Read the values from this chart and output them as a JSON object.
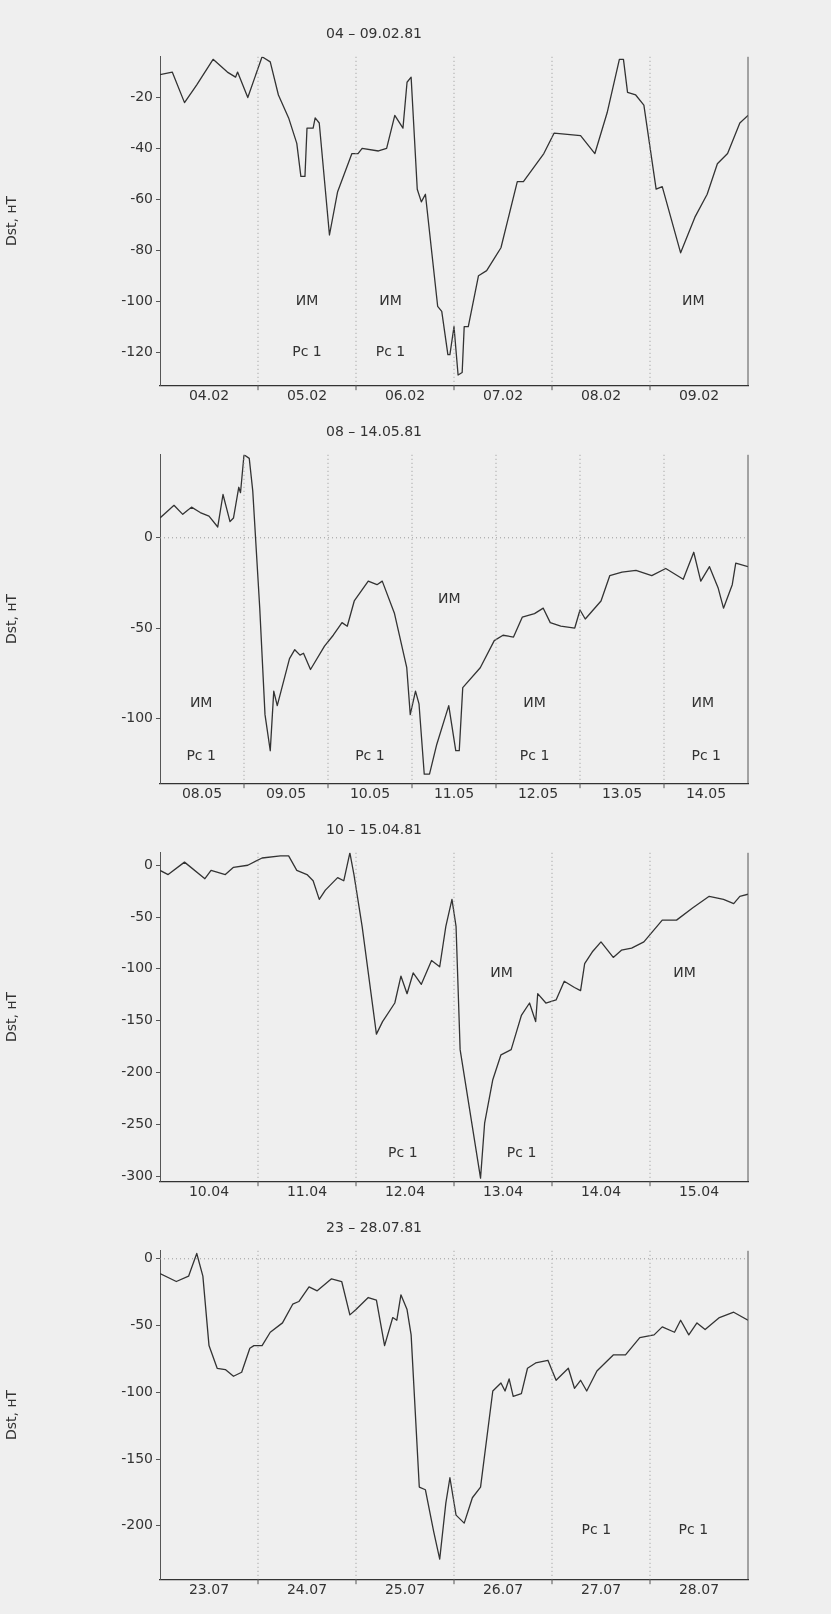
{
  "chart_data": [
    {
      "type": "line",
      "title": "04 – 09.02.81",
      "ylabel": "Dst, нТ",
      "xlim": [
        "--02-04T00:00",
        "--02-10T00:00"
      ],
      "ylim": [
        -133,
        -4
      ],
      "yticks": [
        -20,
        -40,
        -60,
        -80,
        -100,
        -120
      ],
      "xticks": [
        {
          "value": "--02-04T12:00",
          "label": "04.02"
        },
        {
          "value": "--02-05T12:00",
          "label": "05.02"
        },
        {
          "value": "--02-06T12:00",
          "label": "06.02"
        },
        {
          "value": "--02-07T12:00",
          "label": "07.02"
        },
        {
          "value": "--02-08T12:00",
          "label": "08.02"
        },
        {
          "value": "--02-09T12:00",
          "label": "09.02"
        }
      ],
      "x": [
        "--02-04T00:00",
        "--02-04T03:00",
        "--02-04T06:00",
        "--02-04T09:00",
        "--02-04T13:00",
        "--02-04T16:30",
        "--02-04T18:30",
        "--02-04T19:00",
        "--02-04T21:30",
        "--02-05T01:00",
        "--02-05T03:00",
        "--02-05T05:00",
        "--02-05T07:30",
        "--02-05T09:30",
        "--02-05T10:30",
        "--02-05T11:30",
        "--02-05T12:00",
        "--02-05T13:30",
        "--02-05T14:00",
        "--02-05T15:00",
        "--02-05T17:30",
        "--02-05T19:30",
        "--02-05T23:00",
        "--02-06T00:30",
        "--02-06T01:30",
        "--02-06T05:30",
        "--02-06T07:30",
        "--02-06T09:30",
        "--02-06T11:30",
        "--02-06T12:30",
        "--02-06T13:30",
        "--02-06T15:00",
        "--02-06T16:00",
        "--02-06T17:00",
        "--02-06T20:00",
        "--02-06T21:00",
        "--02-06T22:30",
        "--02-06T23:00",
        "--02-07T00:00",
        "--02-07T01:00",
        "--02-07T02:00",
        "--02-07T02:30",
        "--02-07T03:30",
        "--02-07T06:00",
        "--02-07T08:00",
        "--02-07T11:30",
        "--02-07T15:30",
        "--02-07T17:00",
        "--02-07T22:00",
        "--02-08T00:30",
        "--02-08T07:00",
        "--02-08T10:30",
        "--02-08T13:30",
        "--02-08T16:30",
        "--02-08T17:30",
        "--02-08T18:30",
        "--02-08T20:30",
        "--02-08T22:30",
        "--02-09T01:30",
        "--02-09T03:00",
        "--02-09T07:30",
        "--02-09T11:00",
        "--02-09T14:00",
        "--02-09T16:30",
        "--02-09T19:00",
        "--02-09T22:00",
        "--02-10T00:00"
      ],
      "series": [
        {
          "color": "#333333",
          "values": [
            -11,
            -10,
            -22,
            -15,
            -5,
            -10,
            -12,
            -10,
            -20,
            -4,
            -6,
            -19,
            -28,
            -38,
            -51,
            -51,
            -32,
            -32,
            -28,
            -30,
            -74,
            -57,
            -42,
            -42,
            -40,
            -41,
            -40,
            -27,
            -32,
            -14,
            -12,
            -56,
            -61,
            -58,
            -102,
            -104,
            -121,
            -121,
            -110,
            -129,
            -128,
            -110,
            -110,
            -90,
            -88,
            -79,
            -53,
            -53,
            -42,
            -34,
            -35,
            -42,
            -26,
            -5,
            -5,
            -18,
            -19,
            -23,
            -56,
            -55,
            -81,
            -67,
            -58,
            -46,
            -42,
            -30,
            -27
          ]
        }
      ],
      "marker": "none",
      "line_style": "solid",
      "legend": false,
      "grid": false,
      "ref_lines": [
        {
          "axis": "x",
          "value": "--02-05T00:00",
          "color": "#999999",
          "line_style": "dotted"
        },
        {
          "axis": "x",
          "value": "--02-06T00:00",
          "color": "#999999",
          "line_style": "dotted"
        },
        {
          "axis": "x",
          "value": "--02-07T00:00",
          "color": "#999999",
          "line_style": "dotted"
        },
        {
          "axis": "x",
          "value": "--02-08T00:00",
          "color": "#999999",
          "line_style": "dotted"
        },
        {
          "axis": "x",
          "value": "--02-09T00:00",
          "color": "#999999",
          "line_style": "dotted"
        }
      ],
      "annotations": [
        "ИМ",
        "Рс 1",
        "ИМ",
        "Рс 1",
        "ИМ"
      ]
    },
    {
      "type": "line",
      "title": "08 – 14.05.81",
      "ylabel": "Dst, нТ",
      "xlim": [
        "--05-08T00:00",
        "--05-15T00:00"
      ],
      "ylim": [
        -136,
        46
      ],
      "yticks": [
        0,
        -50,
        -100
      ],
      "xticks": [
        {
          "value": "--05-08T12:00",
          "label": "08.05"
        },
        {
          "value": "--05-09T12:00",
          "label": "09.05"
        },
        {
          "value": "--05-10T12:00",
          "label": "10.05"
        },
        {
          "value": "--05-11T12:00",
          "label": "11.05"
        },
        {
          "value": "--05-12T12:00",
          "label": "12.05"
        },
        {
          "value": "--05-13T12:00",
          "label": "13.05"
        },
        {
          "value": "--05-14T12:00",
          "label": "14.05"
        }
      ],
      "x": [
        "--05-08T00:00",
        "--05-08T04:00",
        "--05-08T06:30",
        "--05-08T09:00",
        "--05-08T11:30",
        "--05-08T14:00",
        "--05-08T16:30",
        "--05-08T18:00",
        "--05-08T20:00",
        "--05-08T21:00",
        "--05-08T22:30",
        "--05-08T23:00",
        "--05-09T00:00",
        "--05-09T01:30",
        "--05-09T02:30",
        "--05-09T04:30",
        "--05-09T06:00",
        "--05-09T07:30",
        "--05-09T08:30",
        "--05-09T09:30",
        "--05-09T13:00",
        "--05-09T14:30",
        "--05-09T16:00",
        "--05-09T17:00",
        "--05-09T19:00",
        "--05-09T23:00",
        "--05-10T01:30",
        "--05-10T04:00",
        "--05-10T05:30",
        "--05-10T07:30",
        "--05-10T11:30",
        "--05-10T14:00",
        "--05-10T15:30",
        "--05-10T19:00",
        "--05-10T22:30",
        "--05-10T23:30",
        "--05-11T01:00",
        "--05-11T02:00",
        "--05-11T03:30",
        "--05-11T05:00",
        "--05-11T07:00",
        "--05-11T10:30",
        "--05-11T12:30",
        "--05-11T13:30",
        "--05-11T14:30",
        "--05-11T19:30",
        "--05-11T23:30",
        "--05-12T02:00",
        "--05-12T05:00",
        "--05-12T07:30",
        "--05-12T11:00",
        "--05-12T13:30",
        "--05-12T15:30",
        "--05-12T18:30",
        "--05-12T22:30",
        "--05-13T00:00",
        "--05-13T01:30",
        "--05-13T06:00",
        "--05-13T08:30",
        "--05-13T12:00",
        "--05-13T16:00",
        "--05-13T20:30",
        "--05-14T00:30",
        "--05-14T05:30",
        "--05-14T08:30",
        "--05-14T10:30",
        "--05-14T13:00",
        "--05-14T15:30",
        "--05-14T17:00",
        "--05-14T19:30",
        "--05-14T20:30",
        "--05-15T00:00"
      ],
      "series": [
        {
          "color": "#333333",
          "values": [
            11,
            18,
            13,
            17,
            14,
            12,
            6,
            24,
            9,
            11,
            28,
            25,
            46,
            44,
            26,
            -39,
            -98,
            -118,
            -85,
            -93,
            -67,
            -62,
            -65,
            -64,
            -73,
            -60,
            -54,
            -47,
            -49,
            -35,
            -24,
            -26,
            -24,
            -42,
            -72,
            -98,
            -85,
            -92,
            -131,
            -131,
            -115,
            -93,
            -118,
            -118,
            -83,
            -72,
            -57,
            -54,
            -55,
            -44,
            -42,
            -39,
            -47,
            -49,
            -50,
            -40,
            -45,
            -35,
            -21,
            -19,
            -18,
            -21,
            -17,
            -23,
            -8,
            -24,
            -16,
            -28,
            -39,
            -26,
            -14,
            -16
          ]
        }
      ],
      "marker": "none",
      "line_style": "solid",
      "legend": false,
      "grid": false,
      "ref_lines": [
        {
          "axis": "y",
          "value": 0,
          "color": "#999999",
          "line_style": "dotted"
        },
        {
          "axis": "x",
          "value": "--05-09T00:00",
          "color": "#999999",
          "line_style": "dotted"
        },
        {
          "axis": "x",
          "value": "--05-10T00:00",
          "color": "#999999",
          "line_style": "dotted"
        },
        {
          "axis": "x",
          "value": "--05-11T00:00",
          "color": "#999999",
          "line_style": "dotted"
        },
        {
          "axis": "x",
          "value": "--05-12T00:00",
          "color": "#999999",
          "line_style": "dotted"
        },
        {
          "axis": "x",
          "value": "--05-13T00:00",
          "color": "#999999",
          "line_style": "dotted"
        },
        {
          "axis": "x",
          "value": "--05-14T00:00",
          "color": "#999999",
          "line_style": "dotted"
        }
      ],
      "annotations": [
        "ИМ",
        "Рс 1",
        "Рс 1",
        "ИМ",
        "ИМ",
        "Рс 1",
        "ИМ",
        "Рс 1"
      ]
    },
    {
      "type": "line",
      "title": "10 – 15.04.81",
      "ylabel": "Dst, нТ",
      "xlim": [
        "--04-10T00:00",
        "--04-16T00:00"
      ],
      "ylim": [
        -305,
        12
      ],
      "yticks": [
        0,
        -50,
        -100,
        -150,
        -200,
        -250,
        -300
      ],
      "xticks": [
        {
          "value": "--04-10T12:00",
          "label": "10.04"
        },
        {
          "value": "--04-11T12:00",
          "label": "11.04"
        },
        {
          "value": "--04-12T12:00",
          "label": "12.04"
        },
        {
          "value": "--04-13T12:00",
          "label": "13.04"
        },
        {
          "value": "--04-14T12:00",
          "label": "14.04"
        },
        {
          "value": "--04-15T12:00",
          "label": "15.04"
        }
      ],
      "x": [
        "--04-10T00:00",
        "--04-10T02:00",
        "--04-10T06:00",
        "--04-10T11:00",
        "--04-10T12:30",
        "--04-10T16:00",
        "--04-10T18:00",
        "--04-10T21:30",
        "--04-11T01:00",
        "--04-11T05:30",
        "--04-11T07:30",
        "--04-11T09:30",
        "--04-11T12:00",
        "--04-11T13:30",
        "--04-11T15:00",
        "--04-11T16:30",
        "--04-11T19:30",
        "--04-11T21:00",
        "--04-11T22:30",
        "--04-11T23:30",
        "--04-12T01:30",
        "--04-12T05:00",
        "--04-12T06:30",
        "--04-12T09:30",
        "--04-12T11:00",
        "--04-12T12:30",
        "--04-12T14:00",
        "--04-12T16:00",
        "--04-12T18:30",
        "--04-12T20:30",
        "--04-12T22:00",
        "--04-12T23:30",
        "--04-13T00:30",
        "--04-13T01:30",
        "--04-13T06:30",
        "--04-13T07:30",
        "--04-13T09:30",
        "--04-13T11:30",
        "--04-13T14:00",
        "--04-13T16:30",
        "--04-13T18:30",
        "--04-13T20:00",
        "--04-13T20:30",
        "--04-13T22:30",
        "--04-14T01:00",
        "--04-14T03:00",
        "--04-14T05:30",
        "--04-14T07:00",
        "--04-14T08:00",
        "--04-14T10:00",
        "--04-14T12:00",
        "--04-14T15:00",
        "--04-14T17:00",
        "--04-14T19:30",
        "--04-14T22:30",
        "--04-15T03:00",
        "--04-15T06:30",
        "--04-15T10:30",
        "--04-15T14:30",
        "--04-15T18:00",
        "--04-15T20:30",
        "--04-15T22:00",
        "--04-16T00:00"
      ],
      "series": [
        {
          "color": "#333333",
          "values": [
            -5,
            -9,
            3,
            -13,
            -5,
            -9,
            -2,
            0,
            7,
            9,
            9,
            -5,
            -9,
            -15,
            -33,
            -24,
            -12,
            -15,
            12,
            -9,
            -59,
            -163,
            -151,
            -133,
            -107,
            -124,
            -104,
            -115,
            -92,
            -98,
            -59,
            -33,
            -59,
            -178,
            -302,
            -249,
            -207,
            -183,
            -178,
            -145,
            -133,
            -151,
            -124,
            -133,
            -130,
            -112,
            -118,
            -121,
            -95,
            -83,
            -74,
            -89,
            -82,
            -80,
            -74,
            -53,
            -53,
            -41,
            -30,
            -33,
            -37,
            -30,
            -28
          ]
        }
      ],
      "marker": "none",
      "line_style": "solid",
      "legend": false,
      "grid": false,
      "ref_lines": [
        {
          "axis": "x",
          "value": "--04-11T00:00",
          "color": "#999999",
          "line_style": "dotted"
        },
        {
          "axis": "x",
          "value": "--04-12T00:00",
          "color": "#999999",
          "line_style": "dotted"
        },
        {
          "axis": "x",
          "value": "--04-13T00:00",
          "color": "#999999",
          "line_style": "dotted"
        },
        {
          "axis": "x",
          "value": "--04-14T00:00",
          "color": "#999999",
          "line_style": "dotted"
        },
        {
          "axis": "x",
          "value": "--04-15T00:00",
          "color": "#999999",
          "line_style": "dotted"
        }
      ],
      "annotations": [
        "ИМ",
        "ИМ",
        "Рс 1",
        "Рс 1"
      ]
    },
    {
      "type": "line",
      "title": "23 – 28.07.81",
      "ylabel": "Dst, нТ",
      "xlim": [
        "--07-23T00:00",
        "--07-29T00:00"
      ],
      "ylim": [
        -240,
        6
      ],
      "yticks": [
        0,
        -50,
        -100,
        -150,
        -200
      ],
      "xticks": [
        {
          "value": "--07-23T12:00",
          "label": "23.07"
        },
        {
          "value": "--07-24T12:00",
          "label": "24.07"
        },
        {
          "value": "--07-25T12:00",
          "label": "25.07"
        },
        {
          "value": "--07-26T12:00",
          "label": "26.07"
        },
        {
          "value": "--07-27T12:00",
          "label": "27.07"
        },
        {
          "value": "--07-28T12:00",
          "label": "28.07"
        }
      ],
      "x": [
        "--07-23T00:00",
        "--07-23T04:00",
        "--07-23T07:00",
        "--07-23T09:00",
        "--07-23T10:30",
        "--07-23T12:00",
        "--07-23T14:00",
        "--07-23T16:00",
        "--07-23T18:00",
        "--07-23T20:00",
        "--07-23T22:00",
        "--07-23T23:00",
        "--07-24T01:00",
        "--07-24T03:00",
        "--07-24T06:00",
        "--07-24T08:30",
        "--07-24T10:00",
        "--07-24T12:30",
        "--07-24T14:30",
        "--07-24T18:00",
        "--07-24T20:30",
        "--07-24T22:30",
        "--07-25T00:00",
        "--07-25T03:00",
        "--07-25T05:00",
        "--07-25T07:00",
        "--07-25T09:00",
        "--07-25T10:00",
        "--07-25T11:00",
        "--07-25T12:30",
        "--07-25T13:30",
        "--07-25T15:30",
        "--07-25T17:00",
        "--07-25T19:00",
        "--07-25T20:30",
        "--07-25T22:00",
        "--07-25T23:00",
        "--07-26T00:30",
        "--07-26T02:30",
        "--07-26T04:30",
        "--07-26T06:30",
        "--07-26T09:30",
        "--07-26T11:30",
        "--07-26T12:30",
        "--07-26T13:30",
        "--07-26T14:30",
        "--07-26T16:30",
        "--07-26T18:00",
        "--07-26T20:00",
        "--07-26T23:00",
        "--07-27T01:00",
        "--07-27T04:00",
        "--07-27T05:30",
        "--07-27T07:00",
        "--07-27T08:30",
        "--07-27T11:00",
        "--07-27T15:00",
        "--07-27T18:00",
        "--07-27T21:30",
        "--07-28T01:00",
        "--07-28T03:00",
        "--07-28T06:00",
        "--07-28T07:30",
        "--07-28T09:30",
        "--07-28T11:30",
        "--07-28T13:30",
        "--07-28T17:00",
        "--07-28T20:30",
        "--07-29T00:00"
      ],
      "series": [
        {
          "color": "#333333",
          "values": [
            -11,
            -17,
            -13,
            4,
            -13,
            -65,
            -82,
            -83,
            -88,
            -85,
            -67,
            -65,
            -65,
            -55,
            -48,
            -34,
            -32,
            -21,
            -24,
            -15,
            -17,
            -42,
            -38,
            -29,
            -31,
            -65,
            -44,
            -46,
            -27,
            -38,
            -57,
            -171,
            -173,
            -204,
            -225,
            -183,
            -164,
            -192,
            -198,
            -179,
            -171,
            -99,
            -93,
            -99,
            -90,
            -103,
            -101,
            -82,
            -78,
            -76,
            -91,
            -82,
            -97,
            -91,
            -99,
            -84,
            -72,
            -72,
            -59,
            -57,
            -51,
            -55,
            -46,
            -57,
            -48,
            -53,
            -44,
            -40,
            -46
          ]
        }
      ],
      "marker": "none",
      "line_style": "solid",
      "legend": false,
      "grid": false,
      "ref_lines": [
        {
          "axis": "y",
          "value": 0,
          "color": "#999999",
          "line_style": "dotted"
        },
        {
          "axis": "x",
          "value": "--07-24T00:00",
          "color": "#999999",
          "line_style": "dotted"
        },
        {
          "axis": "x",
          "value": "--07-25T00:00",
          "color": "#999999",
          "line_style": "dotted"
        },
        {
          "axis": "x",
          "value": "--07-26T00:00",
          "color": "#999999",
          "line_style": "dotted"
        },
        {
          "axis": "x",
          "value": "--07-27T00:00",
          "color": "#999999",
          "line_style": "dotted"
        },
        {
          "axis": "x",
          "value": "--07-28T00:00",
          "color": "#999999",
          "line_style": "dotted"
        }
      ],
      "annotations": [
        "Рс 1",
        "Рс 1"
      ]
    }
  ]
}
